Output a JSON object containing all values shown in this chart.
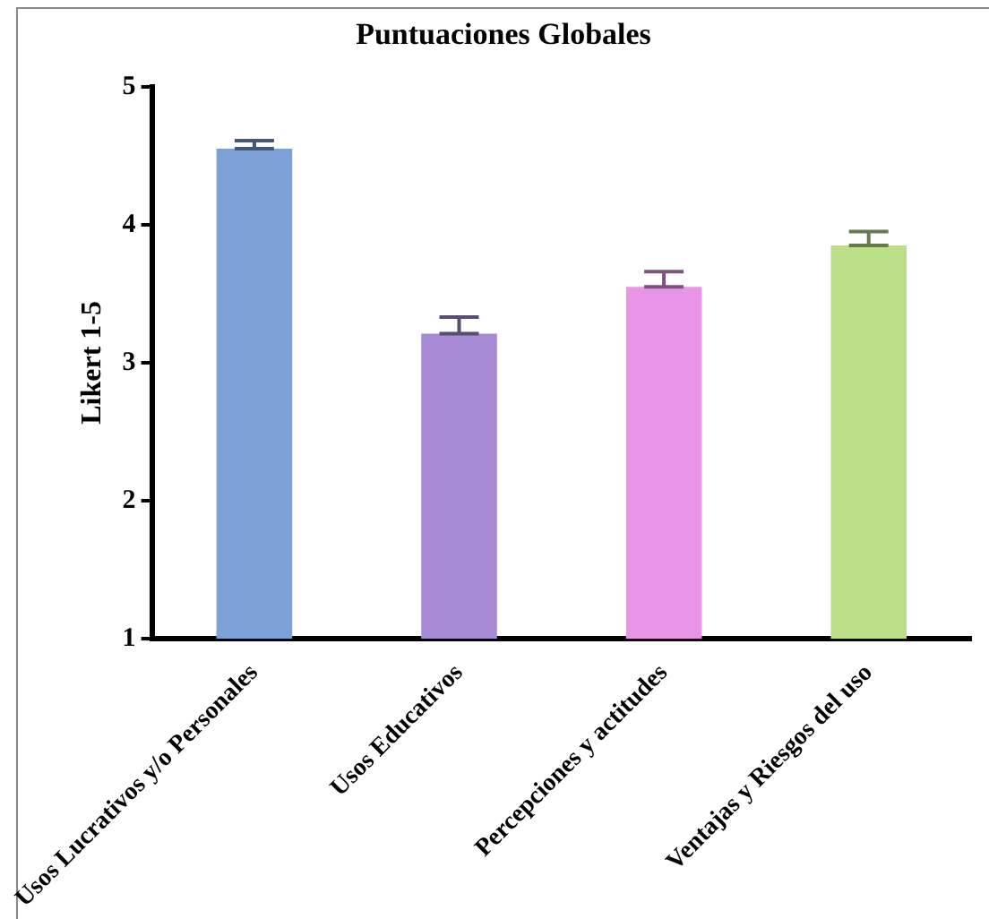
{
  "chart_data": {
    "type": "bar",
    "title": "Puntuaciones Globales",
    "ylabel": "Likert 1-5",
    "categories": [
      "Usos Lucrativos y/o Personales",
      "Usos Educativos",
      "Percepciones y actitudes",
      "Ventajas y Riesgos del uso"
    ],
    "values": [
      4.55,
      3.21,
      3.55,
      3.85
    ],
    "colors": [
      "#7ca1d6",
      "#a68bd4",
      "#e895e8",
      "#bcdf87"
    ],
    "errors": [
      [
        4.55,
        4.61
      ],
      [
        3.21,
        3.33
      ],
      [
        3.55,
        3.66
      ],
      [
        3.85,
        3.95
      ]
    ],
    "ylim": [
      1,
      5
    ],
    "yticks": [
      1,
      2,
      3,
      4,
      5
    ],
    "grid": false,
    "legend": false
  }
}
